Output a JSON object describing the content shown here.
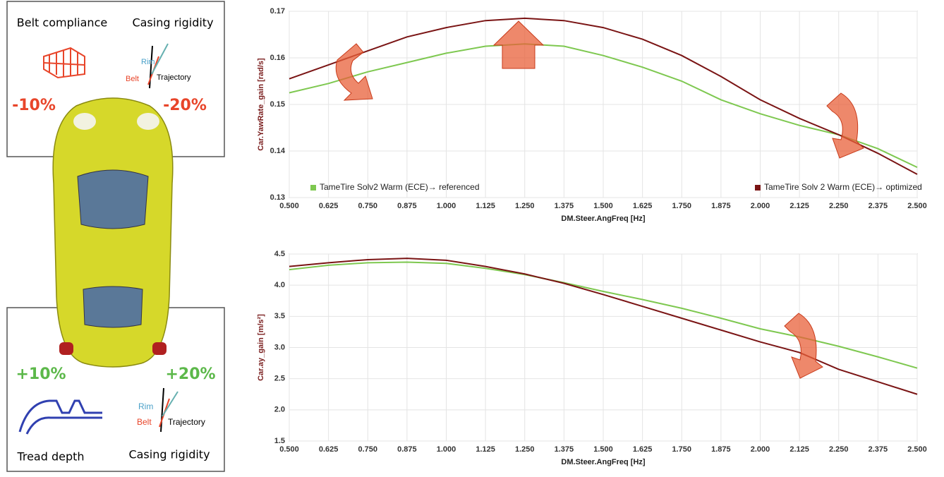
{
  "left_panel": {
    "top": {
      "left_label": "Belt compliance",
      "right_label": "Casing rigidity",
      "left_change": "-10%",
      "right_change": "-20%",
      "rim": "Rim",
      "belt": "Belt",
      "trajectory": "Trajectory"
    },
    "bottom": {
      "left_label": "Tread depth",
      "right_label": "Casing rigidity",
      "left_change": "+10%",
      "right_change": "+20%",
      "rim": "Rim",
      "belt": "Belt",
      "trajectory": "Trajectory"
    }
  },
  "chart_data": [
    {
      "type": "line",
      "xlabel": "DM.Steer.AngFreq [Hz]",
      "ylabel": "Car.YawRate_gain [rad/s]",
      "x": [
        0.5,
        0.625,
        0.75,
        0.875,
        1.0,
        1.125,
        1.25,
        1.375,
        1.5,
        1.625,
        1.75,
        1.875,
        2.0,
        2.125,
        2.25,
        2.375,
        2.5
      ],
      "series": [
        {
          "name": "TameTire Solv2 Warm (ECE)→ referenced",
          "color": "#7ec850",
          "values": [
            0.1525,
            0.1545,
            0.157,
            0.159,
            0.161,
            0.1625,
            0.163,
            0.1625,
            0.1605,
            0.158,
            0.155,
            0.151,
            0.148,
            0.1455,
            0.1435,
            0.1405,
            0.1365
          ]
        },
        {
          "name": "TameTire Solv 2 Warm (ECE)→ optimized",
          "color": "#7a1414",
          "values": [
            0.1555,
            0.1585,
            0.1615,
            0.1645,
            0.1665,
            0.168,
            0.1685,
            0.168,
            0.1665,
            0.164,
            0.1605,
            0.156,
            0.151,
            0.147,
            0.1435,
            0.1395,
            0.135
          ]
        }
      ],
      "xlim": [
        0.5,
        2.5
      ],
      "xticks": [
        {
          "value": 0.5,
          "label": "0.500"
        },
        {
          "value": 0.625,
          "label": "0.625"
        },
        {
          "value": 0.75,
          "label": "0.750"
        },
        {
          "value": 0.875,
          "label": "0.875"
        },
        {
          "value": 1.0,
          "label": "1.000"
        },
        {
          "value": 1.125,
          "label": "1.125"
        },
        {
          "value": 1.25,
          "label": "1.250"
        },
        {
          "value": 1.375,
          "label": "1.375"
        },
        {
          "value": 1.5,
          "label": "1.500"
        },
        {
          "value": 1.625,
          "label": "1.625"
        },
        {
          "value": 1.75,
          "label": "1.750"
        },
        {
          "value": 1.875,
          "label": "1.875"
        },
        {
          "value": 2.0,
          "label": "2.000"
        },
        {
          "value": 2.125,
          "label": "2.125"
        },
        {
          "value": 2.25,
          "label": "2.250"
        },
        {
          "value": 2.375,
          "label": "2.375"
        },
        {
          "value": 2.5,
          "label": "2.500"
        }
      ],
      "ylim": [
        0.13,
        0.17
      ],
      "yticks": [
        0.13,
        0.14,
        0.15,
        0.16,
        0.17
      ],
      "grid": true,
      "legend": "lower"
    },
    {
      "type": "line",
      "xlabel": "DM.Steer.AngFreq [Hz]",
      "ylabel": "Car.ay_gain [m/s²]",
      "x": [
        0.5,
        0.625,
        0.75,
        0.875,
        1.0,
        1.125,
        1.25,
        1.375,
        1.5,
        1.625,
        1.75,
        1.875,
        2.0,
        2.125,
        2.25,
        2.375,
        2.5
      ],
      "series": [
        {
          "color": "#7ec850",
          "values": [
            4.25,
            4.32,
            4.36,
            4.37,
            4.35,
            4.27,
            4.17,
            4.04,
            3.9,
            3.77,
            3.63,
            3.47,
            3.3,
            3.17,
            3.02,
            2.85,
            2.67
          ]
        },
        {
          "color": "#7a1414",
          "values": [
            4.3,
            4.36,
            4.41,
            4.43,
            4.4,
            4.3,
            4.18,
            4.03,
            3.85,
            3.66,
            3.47,
            3.28,
            3.09,
            2.92,
            2.65,
            2.45,
            2.25
          ]
        }
      ],
      "xlim": [
        0.5,
        2.5
      ],
      "xticks": [
        {
          "value": 0.5,
          "label": "0.500"
        },
        {
          "value": 0.625,
          "label": "0.625"
        },
        {
          "value": 0.75,
          "label": "0.750"
        },
        {
          "value": 0.875,
          "label": "0.875"
        },
        {
          "value": 1.0,
          "label": "1.000"
        },
        {
          "value": 1.125,
          "label": "1.125"
        },
        {
          "value": 1.25,
          "label": "1.250"
        },
        {
          "value": 1.375,
          "label": "1.375"
        },
        {
          "value": 1.5,
          "label": "1.500"
        },
        {
          "value": 1.625,
          "label": "1.625"
        },
        {
          "value": 1.75,
          "label": "1.750"
        },
        {
          "value": 1.875,
          "label": "1.875"
        },
        {
          "value": 2.0,
          "label": "2.000"
        },
        {
          "value": 2.125,
          "label": "2.125"
        },
        {
          "value": 2.25,
          "label": "2.250"
        },
        {
          "value": 2.375,
          "label": "2.375"
        },
        {
          "value": 2.5,
          "label": "2.500"
        }
      ],
      "ylim": [
        1.5,
        4.5
      ],
      "yticks": [
        1.5,
        {
          "value": 2.0,
          "label": "2.0"
        },
        2.5,
        {
          "value": 3.0,
          "label": "3.0"
        },
        3.5,
        {
          "value": 4.0,
          "label": "4.0"
        },
        4.5
      ],
      "grid": true
    }
  ]
}
